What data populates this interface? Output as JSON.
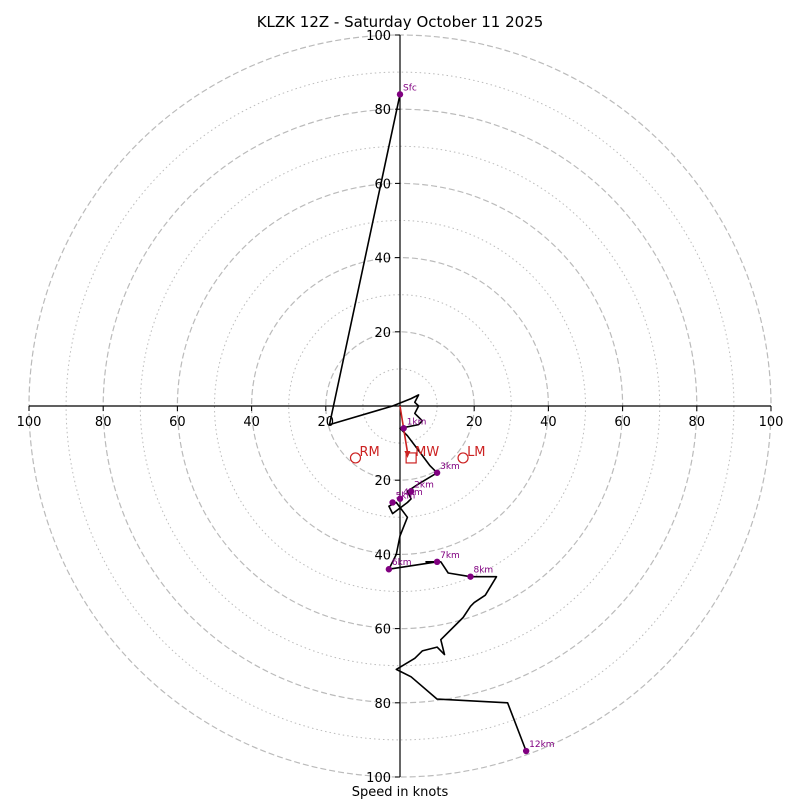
{
  "chart_data": {
    "type": "hodograph",
    "title": "KLZK 12Z - Saturday October 11 2025",
    "xlabel": "Speed in knots",
    "range": [
      -100,
      100
    ],
    "ring_major": [
      20,
      40,
      60,
      80,
      100
    ],
    "ring_minor": [
      10,
      30,
      50,
      70,
      90
    ],
    "x_ticks": [
      "100",
      "80",
      "60",
      "40",
      "20",
      "20",
      "40",
      "60",
      "80",
      "100"
    ],
    "y_ticks": [
      "100",
      "80",
      "60",
      "40",
      "20",
      "20",
      "40",
      "60",
      "80",
      "100"
    ],
    "colors": {
      "trace": "#000000",
      "marker": "#800080",
      "motion": "#cc2222",
      "grid": "#bbbbbb"
    },
    "trace": [
      [
        0,
        84
      ],
      [
        -19,
        -5
      ],
      [
        -2,
        0
      ],
      [
        3,
        2
      ],
      [
        5,
        3
      ],
      [
        4,
        1
      ],
      [
        5,
        0
      ],
      [
        4,
        -2
      ],
      [
        6,
        -4
      ],
      [
        5,
        -5
      ],
      [
        0,
        -6
      ],
      [
        2,
        -8
      ],
      [
        5,
        -12
      ],
      [
        8,
        -16
      ],
      [
        10,
        -18
      ],
      [
        5,
        -21
      ],
      [
        2,
        -23
      ],
      [
        3,
        -25
      ],
      [
        2,
        -26
      ],
      [
        -2,
        -29
      ],
      [
        -3,
        -27
      ],
      [
        -1,
        -26
      ],
      [
        2,
        -30
      ],
      [
        0,
        -35
      ],
      [
        -1,
        -40
      ],
      [
        -3,
        -44
      ],
      [
        10,
        -42
      ],
      [
        7,
        -42
      ],
      [
        11,
        -42
      ],
      [
        13,
        -45
      ],
      [
        19,
        -46
      ],
      [
        26,
        -46
      ],
      [
        23,
        -51
      ],
      [
        20,
        -53
      ],
      [
        19,
        -54
      ],
      [
        17,
        -57
      ],
      [
        11,
        -63
      ],
      [
        12,
        -67
      ],
      [
        10,
        -65
      ],
      [
        6,
        -66
      ],
      [
        4,
        -68
      ],
      [
        -1,
        -71
      ],
      [
        3,
        -73
      ],
      [
        10,
        -79
      ],
      [
        29,
        -80
      ],
      [
        34,
        -93
      ]
    ],
    "height_markers": [
      {
        "label": "Sfc",
        "u": 0,
        "v": 84
      },
      {
        "label": "1km",
        "u": 1,
        "v": -6
      },
      {
        "label": "2km",
        "u": 3,
        "v": -23
      },
      {
        "label": "3km",
        "u": 10,
        "v": -18
      },
      {
        "label": "4km",
        "u": 0,
        "v": -25
      },
      {
        "label": "5km",
        "u": -2,
        "v": -26
      },
      {
        "label": "6km",
        "u": -3,
        "v": -44
      },
      {
        "label": "7km",
        "u": 10,
        "v": -42
      },
      {
        "label": "8km",
        "u": 19,
        "v": -46
      },
      {
        "label": "12km",
        "u": 34,
        "v": -93
      }
    ],
    "storm_motion": [
      {
        "label": "RM",
        "u": -12,
        "v": -14,
        "shape": "circle"
      },
      {
        "label": "MW",
        "u": 3,
        "v": -14,
        "shape": "square"
      },
      {
        "label": "LM",
        "u": 17,
        "v": -14,
        "shape": "circle"
      }
    ],
    "shear_arrow": {
      "from": [
        0,
        0
      ],
      "to": [
        2,
        -14
      ]
    }
  }
}
